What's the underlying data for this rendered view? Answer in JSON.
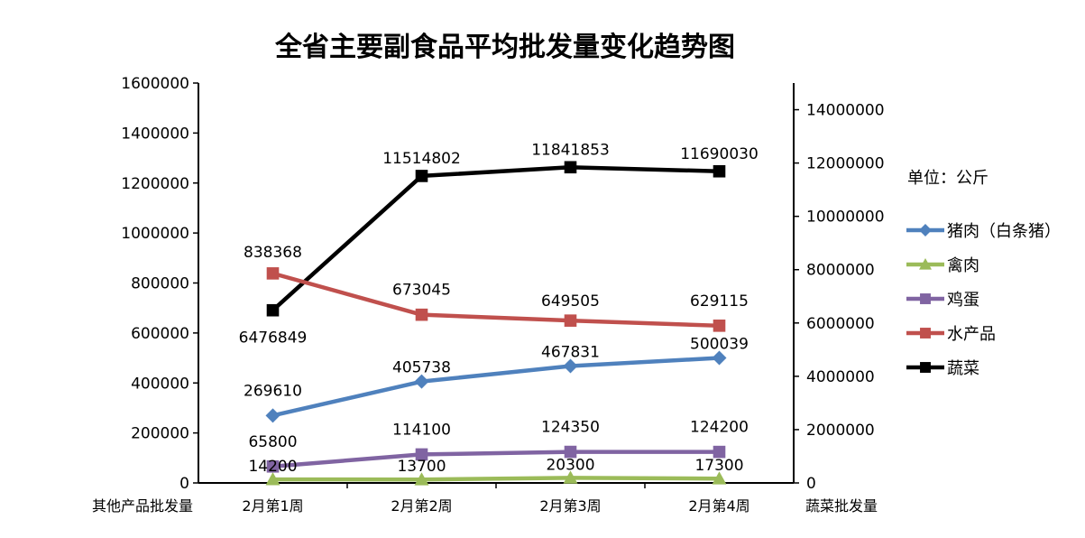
{
  "chart_data": {
    "type": "line",
    "title": "全省主要副食品平均批发量变化趋势图",
    "unit_label": "单位：公斤",
    "xlabel": "",
    "ylabel_left": "其他产品批发量",
    "ylabel_right": "蔬菜批发量",
    "categories": [
      "2月第1周",
      "2月第2周",
      "2月第3周",
      "2月第4周"
    ],
    "y_left": {
      "range": [
        0,
        1600000
      ],
      "ticks": [
        0,
        200000,
        400000,
        600000,
        800000,
        1000000,
        1200000,
        1400000,
        1600000
      ]
    },
    "y_right": {
      "range": [
        0,
        15000000
      ],
      "ticks": [
        0,
        2000000,
        4000000,
        6000000,
        8000000,
        10000000,
        12000000,
        14000000
      ]
    },
    "grid": false,
    "legend_position": "right",
    "series": [
      {
        "name": "猪肉（白条猪）",
        "axis": "left",
        "color": "#4F81BD",
        "marker": "diamond",
        "values": [
          269610,
          405738,
          467831,
          500039
        ]
      },
      {
        "name": "禽肉",
        "axis": "left",
        "color": "#9BBB59",
        "marker": "triangle",
        "values": [
          14200,
          13700,
          20300,
          17300
        ]
      },
      {
        "name": "鸡蛋",
        "axis": "left",
        "color": "#8064A2",
        "marker": "square",
        "values": [
          65800,
          114100,
          124350,
          124200
        ]
      },
      {
        "name": "水产品",
        "axis": "left",
        "color": "#C0504D",
        "marker": "square",
        "values": [
          838368,
          673045,
          649505,
          629115
        ]
      },
      {
        "name": "蔬菜",
        "axis": "right",
        "color": "#000000",
        "marker": "square",
        "values": [
          6476849,
          11514802,
          11841853,
          11690030
        ]
      }
    ]
  }
}
